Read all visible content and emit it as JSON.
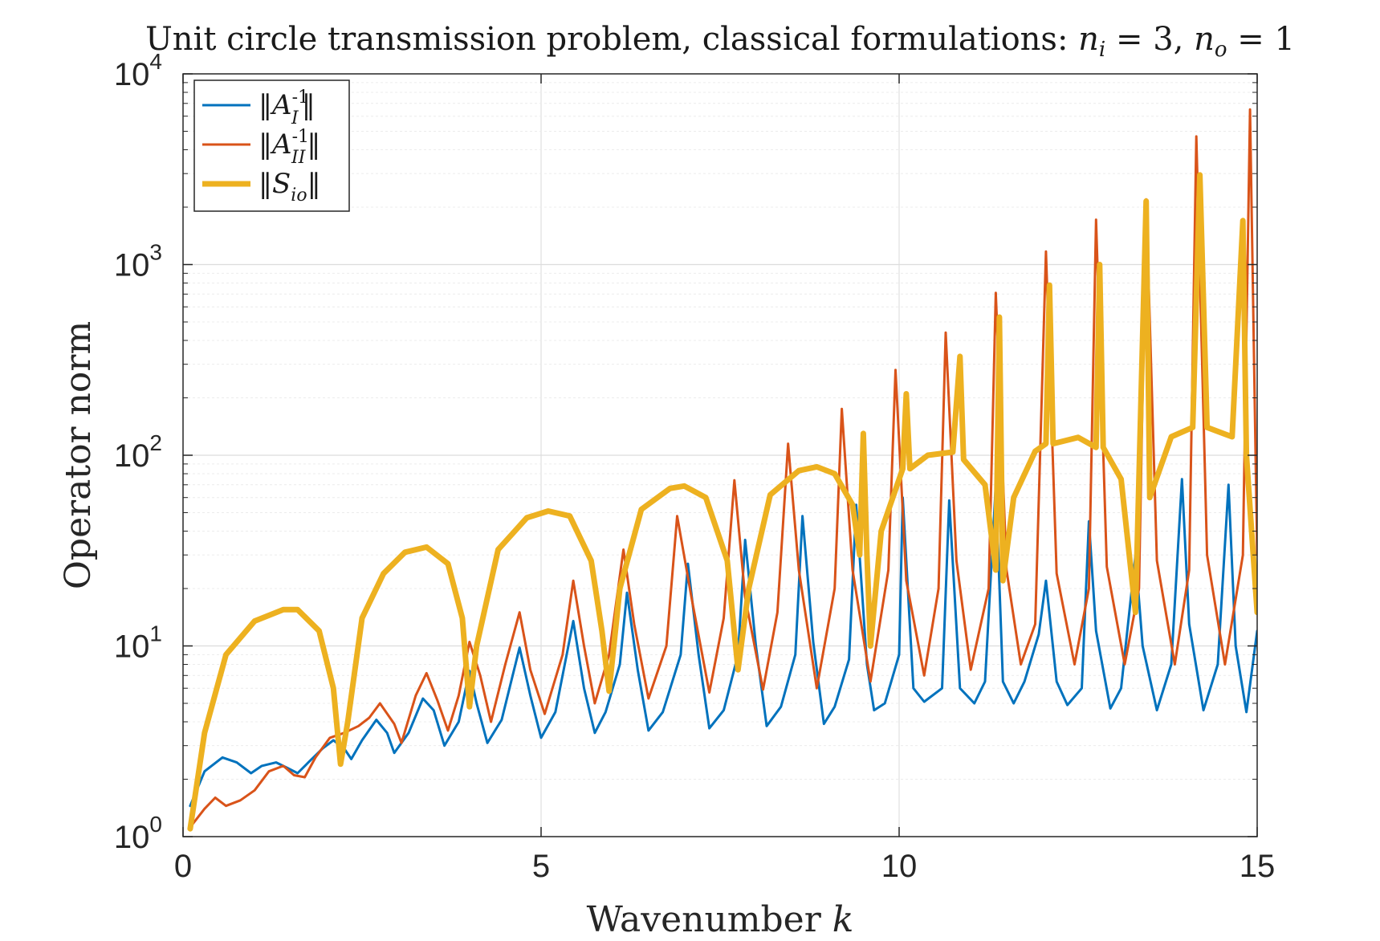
{
  "chart_data": {
    "type": "line",
    "title": "Unit circle transmission problem, classical formulations: n_i = 3, n_o = 1",
    "title_parts": {
      "prefix": "Unit circle transmission problem, classical formulations: ",
      "n_i_sym": "n",
      "n_i_sub": "i",
      "n_i_val": " = 3, ",
      "n_o_sym": "n",
      "n_o_sub": "o",
      "n_o_val": " = 1"
    },
    "xlabel": "Wavenumber k",
    "xlabel_text": "Wavenumber ",
    "xlabel_var": "k",
    "ylabel": "Operator norm",
    "xlim": [
      0,
      15
    ],
    "ylim": [
      1,
      10000
    ],
    "yscale": "log",
    "grid": true,
    "legend_position": "top-left",
    "x_ticks": [
      "0",
      "5",
      "10",
      "15"
    ],
    "x_tick_values": [
      0,
      5,
      10,
      15
    ],
    "y_ticks": [
      {
        "base": "10",
        "exp": "0"
      },
      {
        "base": "10",
        "exp": "1"
      },
      {
        "base": "10",
        "exp": "2"
      },
      {
        "base": "10",
        "exp": "3"
      },
      {
        "base": "10",
        "exp": "4"
      }
    ],
    "y_tick_values": [
      1,
      10,
      100,
      1000,
      10000
    ],
    "series": [
      {
        "name": "||A_I^{-1}||",
        "legend_label": "‖A_I^-1‖",
        "color": "#0072BD",
        "line_width": 3,
        "points": [
          [
            0.1,
            1.45
          ],
          [
            0.3,
            2.2
          ],
          [
            0.55,
            2.6
          ],
          [
            0.75,
            2.45
          ],
          [
            0.95,
            2.15
          ],
          [
            1.1,
            2.35
          ],
          [
            1.3,
            2.45
          ],
          [
            1.45,
            2.3
          ],
          [
            1.6,
            2.15
          ],
          [
            1.75,
            2.45
          ],
          [
            1.95,
            2.9
          ],
          [
            2.1,
            3.2
          ],
          [
            2.25,
            2.9
          ],
          [
            2.35,
            2.55
          ],
          [
            2.5,
            3.2
          ],
          [
            2.7,
            4.1
          ],
          [
            2.85,
            3.5
          ],
          [
            2.95,
            2.75
          ],
          [
            3.15,
            3.5
          ],
          [
            3.35,
            5.3
          ],
          [
            3.5,
            4.6
          ],
          [
            3.65,
            3.0
          ],
          [
            3.85,
            4.0
          ],
          [
            4.0,
            7.4
          ],
          [
            4.1,
            5.0
          ],
          [
            4.25,
            3.1
          ],
          [
            4.45,
            4.1
          ],
          [
            4.7,
            9.8
          ],
          [
            4.85,
            5.5
          ],
          [
            5.0,
            3.3
          ],
          [
            5.2,
            4.5
          ],
          [
            5.45,
            13.5
          ],
          [
            5.6,
            6.0
          ],
          [
            5.75,
            3.5
          ],
          [
            5.9,
            4.5
          ],
          [
            6.1,
            8.0
          ],
          [
            6.2,
            19.0
          ],
          [
            6.35,
            7.5
          ],
          [
            6.5,
            3.6
          ],
          [
            6.7,
            4.5
          ],
          [
            6.95,
            9.0
          ],
          [
            7.05,
            27.0
          ],
          [
            7.2,
            9.0
          ],
          [
            7.35,
            3.7
          ],
          [
            7.55,
            4.6
          ],
          [
            7.75,
            9.0
          ],
          [
            7.85,
            36.0
          ],
          [
            8.0,
            10.0
          ],
          [
            8.15,
            3.8
          ],
          [
            8.35,
            4.8
          ],
          [
            8.55,
            9.0
          ],
          [
            8.65,
            48.0
          ],
          [
            8.8,
            10.5
          ],
          [
            8.95,
            3.9
          ],
          [
            9.1,
            4.8
          ],
          [
            9.3,
            8.5
          ],
          [
            9.4,
            55.0
          ],
          [
            9.55,
            8.0
          ],
          [
            9.65,
            4.6
          ],
          [
            9.8,
            5.0
          ],
          [
            10.0,
            9.0
          ],
          [
            10.05,
            60.0
          ],
          [
            10.2,
            6.0
          ],
          [
            10.35,
            5.1
          ],
          [
            10.6,
            6.0
          ],
          [
            10.7,
            58.0
          ],
          [
            10.85,
            6.0
          ],
          [
            11.05,
            5.0
          ],
          [
            11.2,
            6.5
          ],
          [
            11.35,
            70.0
          ],
          [
            11.45,
            6.5
          ],
          [
            11.6,
            5.0
          ],
          [
            11.75,
            6.5
          ],
          [
            11.95,
            11.5
          ],
          [
            12.05,
            22.0
          ],
          [
            12.2,
            6.5
          ],
          [
            12.35,
            4.9
          ],
          [
            12.55,
            6.0
          ],
          [
            12.65,
            45.0
          ],
          [
            12.75,
            12.0
          ],
          [
            12.95,
            4.7
          ],
          [
            13.1,
            6.0
          ],
          [
            13.3,
            30.0
          ],
          [
            13.4,
            10.0
          ],
          [
            13.6,
            4.6
          ],
          [
            13.8,
            8.0
          ],
          [
            13.95,
            75.0
          ],
          [
            14.05,
            13.0
          ],
          [
            14.25,
            4.6
          ],
          [
            14.45,
            8.0
          ],
          [
            14.6,
            70.0
          ],
          [
            14.7,
            10.0
          ],
          [
            14.85,
            4.5
          ],
          [
            15.0,
            12.0
          ]
        ]
      },
      {
        "name": "||A_II^{-1}||",
        "legend_label": "‖A_II^-1‖",
        "color": "#D95319",
        "line_width": 3,
        "points": [
          [
            0.1,
            1.12
          ],
          [
            0.3,
            1.4
          ],
          [
            0.45,
            1.6
          ],
          [
            0.6,
            1.45
          ],
          [
            0.8,
            1.55
          ],
          [
            1.0,
            1.75
          ],
          [
            1.2,
            2.2
          ],
          [
            1.4,
            2.35
          ],
          [
            1.55,
            2.1
          ],
          [
            1.7,
            2.05
          ],
          [
            1.85,
            2.6
          ],
          [
            2.05,
            3.3
          ],
          [
            2.25,
            3.5
          ],
          [
            2.45,
            3.8
          ],
          [
            2.6,
            4.2
          ],
          [
            2.75,
            5.0
          ],
          [
            2.95,
            3.9
          ],
          [
            3.05,
            3.1
          ],
          [
            3.25,
            5.5
          ],
          [
            3.4,
            7.2
          ],
          [
            3.55,
            5.2
          ],
          [
            3.7,
            3.6
          ],
          [
            3.85,
            5.5
          ],
          [
            4.0,
            10.5
          ],
          [
            4.15,
            7.0
          ],
          [
            4.3,
            4.0
          ],
          [
            4.5,
            8.0
          ],
          [
            4.7,
            15.0
          ],
          [
            4.85,
            7.5
          ],
          [
            5.05,
            4.4
          ],
          [
            5.3,
            9.0
          ],
          [
            5.45,
            22.0
          ],
          [
            5.6,
            10.0
          ],
          [
            5.75,
            5.0
          ],
          [
            5.95,
            9.0
          ],
          [
            6.15,
            32.0
          ],
          [
            6.3,
            13.0
          ],
          [
            6.5,
            5.3
          ],
          [
            6.75,
            10.0
          ],
          [
            6.9,
            48.0
          ],
          [
            7.1,
            18.0
          ],
          [
            7.35,
            5.7
          ],
          [
            7.55,
            14.0
          ],
          [
            7.7,
            74.0
          ],
          [
            7.85,
            18.0
          ],
          [
            8.1,
            5.9
          ],
          [
            8.3,
            15.0
          ],
          [
            8.45,
            115.0
          ],
          [
            8.6,
            25.0
          ],
          [
            8.85,
            6.0
          ],
          [
            9.1,
            20.0
          ],
          [
            9.2,
            175.0
          ],
          [
            9.35,
            25.0
          ],
          [
            9.6,
            6.5
          ],
          [
            9.85,
            25.0
          ],
          [
            9.95,
            280.0
          ],
          [
            10.1,
            22.0
          ],
          [
            10.35,
            7.0
          ],
          [
            10.55,
            20.0
          ],
          [
            10.65,
            440.0
          ],
          [
            10.8,
            28.0
          ],
          [
            11.0,
            7.5
          ],
          [
            11.25,
            20.0
          ],
          [
            11.35,
            710.0
          ],
          [
            11.5,
            25.0
          ],
          [
            11.7,
            8.0
          ],
          [
            11.9,
            13.0
          ],
          [
            12.05,
            1170.0
          ],
          [
            12.2,
            24.0
          ],
          [
            12.45,
            8.0
          ],
          [
            12.65,
            20.0
          ],
          [
            12.75,
            1720.0
          ],
          [
            12.9,
            26.0
          ],
          [
            13.15,
            8.0
          ],
          [
            13.35,
            20.0
          ],
          [
            13.45,
            2200.0
          ],
          [
            13.6,
            28.0
          ],
          [
            13.85,
            8.0
          ],
          [
            14.05,
            25.0
          ],
          [
            14.15,
            4700.0
          ],
          [
            14.3,
            30.0
          ],
          [
            14.55,
            8.0
          ],
          [
            14.8,
            30.0
          ],
          [
            14.9,
            6500.0
          ],
          [
            15.0,
            30.0
          ]
        ]
      },
      {
        "name": "||S_io||",
        "legend_label": "‖S_io‖",
        "color": "#EDB120",
        "line_width": 7,
        "points": [
          [
            0.1,
            1.1
          ],
          [
            0.3,
            3.5
          ],
          [
            0.6,
            9.0
          ],
          [
            1.0,
            13.5
          ],
          [
            1.4,
            15.5
          ],
          [
            1.6,
            15.5
          ],
          [
            1.9,
            12.0
          ],
          [
            2.1,
            6.0
          ],
          [
            2.2,
            2.4
          ],
          [
            2.3,
            4.0
          ],
          [
            2.5,
            14.0
          ],
          [
            2.8,
            24.0
          ],
          [
            3.1,
            31.0
          ],
          [
            3.4,
            33.0
          ],
          [
            3.7,
            27.0
          ],
          [
            3.9,
            14.0
          ],
          [
            4.0,
            4.8
          ],
          [
            4.1,
            10.0
          ],
          [
            4.4,
            32.0
          ],
          [
            4.8,
            47.0
          ],
          [
            5.1,
            51.0
          ],
          [
            5.4,
            48.0
          ],
          [
            5.7,
            28.0
          ],
          [
            5.85,
            12.0
          ],
          [
            5.95,
            5.8
          ],
          [
            6.1,
            20.0
          ],
          [
            6.4,
            52.0
          ],
          [
            6.8,
            67.0
          ],
          [
            7.0,
            69.0
          ],
          [
            7.3,
            60.0
          ],
          [
            7.6,
            28.0
          ],
          [
            7.75,
            7.5
          ],
          [
            7.9,
            20.0
          ],
          [
            8.2,
            62.0
          ],
          [
            8.6,
            83.0
          ],
          [
            8.85,
            87.0
          ],
          [
            9.1,
            80.0
          ],
          [
            9.35,
            55.0
          ],
          [
            9.45,
            30.0
          ],
          [
            9.5,
            130.0
          ],
          [
            9.55,
            30.0
          ],
          [
            9.6,
            10.0
          ],
          [
            9.75,
            40.0
          ],
          [
            10.05,
            85.0
          ],
          [
            10.1,
            210.0
          ],
          [
            10.15,
            85.0
          ],
          [
            10.4,
            100.0
          ],
          [
            10.75,
            104.0
          ],
          [
            10.85,
            330.0
          ],
          [
            10.9,
            95.0
          ],
          [
            11.2,
            70.0
          ],
          [
            11.35,
            25.0
          ],
          [
            11.4,
            530.0
          ],
          [
            11.45,
            22.0
          ],
          [
            11.6,
            60.0
          ],
          [
            11.9,
            105.0
          ],
          [
            12.05,
            115.0
          ],
          [
            12.1,
            780.0
          ],
          [
            12.15,
            115.0
          ],
          [
            12.5,
            124.0
          ],
          [
            12.75,
            110.0
          ],
          [
            12.8,
            1000.0
          ],
          [
            12.85,
            110.0
          ],
          [
            13.1,
            75.0
          ],
          [
            13.3,
            15.0
          ],
          [
            13.45,
            2150.0
          ],
          [
            13.5,
            60.0
          ],
          [
            13.8,
            125.0
          ],
          [
            14.1,
            140.0
          ],
          [
            14.2,
            2950.0
          ],
          [
            14.3,
            140.0
          ],
          [
            14.65,
            125.0
          ],
          [
            14.8,
            1700.0
          ],
          [
            14.85,
            100.0
          ],
          [
            15.0,
            15.0
          ]
        ]
      }
    ]
  }
}
